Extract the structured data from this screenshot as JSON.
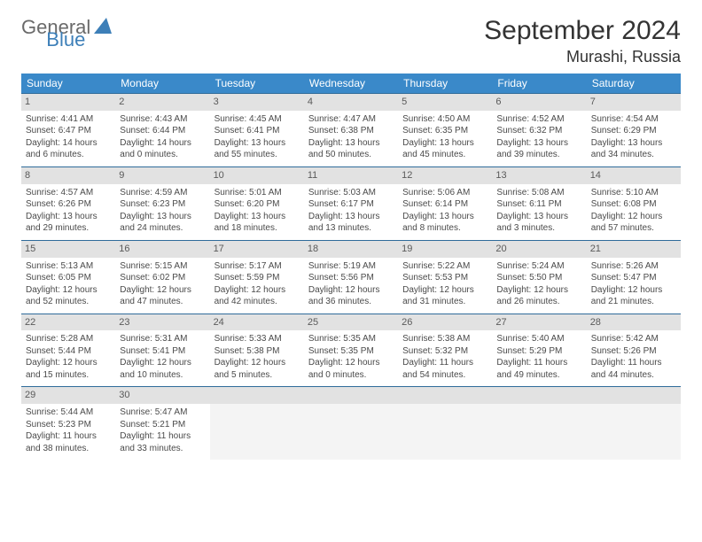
{
  "logo": {
    "text1": "General",
    "text2": "Blue"
  },
  "title": "September 2024",
  "location": "Murashi, Russia",
  "colors": {
    "header_bg": "#3a89c9",
    "header_text": "#ffffff",
    "daynum_bg": "#e2e2e2",
    "border": "#2f6b9a",
    "logo_gray": "#6a6a6a",
    "logo_blue": "#3d7fb8"
  },
  "weekdays": [
    "Sunday",
    "Monday",
    "Tuesday",
    "Wednesday",
    "Thursday",
    "Friday",
    "Saturday"
  ],
  "weeks": [
    [
      {
        "n": "1",
        "sr": "Sunrise: 4:41 AM",
        "ss": "Sunset: 6:47 PM",
        "d1": "Daylight: 14 hours",
        "d2": "and 6 minutes."
      },
      {
        "n": "2",
        "sr": "Sunrise: 4:43 AM",
        "ss": "Sunset: 6:44 PM",
        "d1": "Daylight: 14 hours",
        "d2": "and 0 minutes."
      },
      {
        "n": "3",
        "sr": "Sunrise: 4:45 AM",
        "ss": "Sunset: 6:41 PM",
        "d1": "Daylight: 13 hours",
        "d2": "and 55 minutes."
      },
      {
        "n": "4",
        "sr": "Sunrise: 4:47 AM",
        "ss": "Sunset: 6:38 PM",
        "d1": "Daylight: 13 hours",
        "d2": "and 50 minutes."
      },
      {
        "n": "5",
        "sr": "Sunrise: 4:50 AM",
        "ss": "Sunset: 6:35 PM",
        "d1": "Daylight: 13 hours",
        "d2": "and 45 minutes."
      },
      {
        "n": "6",
        "sr": "Sunrise: 4:52 AM",
        "ss": "Sunset: 6:32 PM",
        "d1": "Daylight: 13 hours",
        "d2": "and 39 minutes."
      },
      {
        "n": "7",
        "sr": "Sunrise: 4:54 AM",
        "ss": "Sunset: 6:29 PM",
        "d1": "Daylight: 13 hours",
        "d2": "and 34 minutes."
      }
    ],
    [
      {
        "n": "8",
        "sr": "Sunrise: 4:57 AM",
        "ss": "Sunset: 6:26 PM",
        "d1": "Daylight: 13 hours",
        "d2": "and 29 minutes."
      },
      {
        "n": "9",
        "sr": "Sunrise: 4:59 AM",
        "ss": "Sunset: 6:23 PM",
        "d1": "Daylight: 13 hours",
        "d2": "and 24 minutes."
      },
      {
        "n": "10",
        "sr": "Sunrise: 5:01 AM",
        "ss": "Sunset: 6:20 PM",
        "d1": "Daylight: 13 hours",
        "d2": "and 18 minutes."
      },
      {
        "n": "11",
        "sr": "Sunrise: 5:03 AM",
        "ss": "Sunset: 6:17 PM",
        "d1": "Daylight: 13 hours",
        "d2": "and 13 minutes."
      },
      {
        "n": "12",
        "sr": "Sunrise: 5:06 AM",
        "ss": "Sunset: 6:14 PM",
        "d1": "Daylight: 13 hours",
        "d2": "and 8 minutes."
      },
      {
        "n": "13",
        "sr": "Sunrise: 5:08 AM",
        "ss": "Sunset: 6:11 PM",
        "d1": "Daylight: 13 hours",
        "d2": "and 3 minutes."
      },
      {
        "n": "14",
        "sr": "Sunrise: 5:10 AM",
        "ss": "Sunset: 6:08 PM",
        "d1": "Daylight: 12 hours",
        "d2": "and 57 minutes."
      }
    ],
    [
      {
        "n": "15",
        "sr": "Sunrise: 5:13 AM",
        "ss": "Sunset: 6:05 PM",
        "d1": "Daylight: 12 hours",
        "d2": "and 52 minutes."
      },
      {
        "n": "16",
        "sr": "Sunrise: 5:15 AM",
        "ss": "Sunset: 6:02 PM",
        "d1": "Daylight: 12 hours",
        "d2": "and 47 minutes."
      },
      {
        "n": "17",
        "sr": "Sunrise: 5:17 AM",
        "ss": "Sunset: 5:59 PM",
        "d1": "Daylight: 12 hours",
        "d2": "and 42 minutes."
      },
      {
        "n": "18",
        "sr": "Sunrise: 5:19 AM",
        "ss": "Sunset: 5:56 PM",
        "d1": "Daylight: 12 hours",
        "d2": "and 36 minutes."
      },
      {
        "n": "19",
        "sr": "Sunrise: 5:22 AM",
        "ss": "Sunset: 5:53 PM",
        "d1": "Daylight: 12 hours",
        "d2": "and 31 minutes."
      },
      {
        "n": "20",
        "sr": "Sunrise: 5:24 AM",
        "ss": "Sunset: 5:50 PM",
        "d1": "Daylight: 12 hours",
        "d2": "and 26 minutes."
      },
      {
        "n": "21",
        "sr": "Sunrise: 5:26 AM",
        "ss": "Sunset: 5:47 PM",
        "d1": "Daylight: 12 hours",
        "d2": "and 21 minutes."
      }
    ],
    [
      {
        "n": "22",
        "sr": "Sunrise: 5:28 AM",
        "ss": "Sunset: 5:44 PM",
        "d1": "Daylight: 12 hours",
        "d2": "and 15 minutes."
      },
      {
        "n": "23",
        "sr": "Sunrise: 5:31 AM",
        "ss": "Sunset: 5:41 PM",
        "d1": "Daylight: 12 hours",
        "d2": "and 10 minutes."
      },
      {
        "n": "24",
        "sr": "Sunrise: 5:33 AM",
        "ss": "Sunset: 5:38 PM",
        "d1": "Daylight: 12 hours",
        "d2": "and 5 minutes."
      },
      {
        "n": "25",
        "sr": "Sunrise: 5:35 AM",
        "ss": "Sunset: 5:35 PM",
        "d1": "Daylight: 12 hours",
        "d2": "and 0 minutes."
      },
      {
        "n": "26",
        "sr": "Sunrise: 5:38 AM",
        "ss": "Sunset: 5:32 PM",
        "d1": "Daylight: 11 hours",
        "d2": "and 54 minutes."
      },
      {
        "n": "27",
        "sr": "Sunrise: 5:40 AM",
        "ss": "Sunset: 5:29 PM",
        "d1": "Daylight: 11 hours",
        "d2": "and 49 minutes."
      },
      {
        "n": "28",
        "sr": "Sunrise: 5:42 AM",
        "ss": "Sunset: 5:26 PM",
        "d1": "Daylight: 11 hours",
        "d2": "and 44 minutes."
      }
    ],
    [
      {
        "n": "29",
        "sr": "Sunrise: 5:44 AM",
        "ss": "Sunset: 5:23 PM",
        "d1": "Daylight: 11 hours",
        "d2": "and 38 minutes."
      },
      {
        "n": "30",
        "sr": "Sunrise: 5:47 AM",
        "ss": "Sunset: 5:21 PM",
        "d1": "Daylight: 11 hours",
        "d2": "and 33 minutes."
      },
      {
        "empty": true
      },
      {
        "empty": true
      },
      {
        "empty": true
      },
      {
        "empty": true
      },
      {
        "empty": true
      }
    ]
  ]
}
